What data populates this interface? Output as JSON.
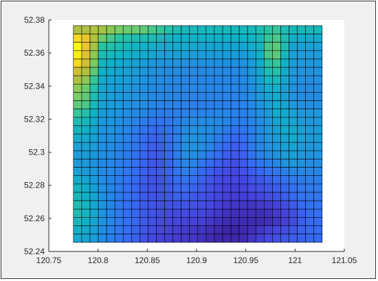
{
  "colors": {
    "figure_background": "#f0f0f0",
    "axes_background": "#ffffff",
    "frame_border": "#333333",
    "cell_edge": "#000000",
    "colormap": "parula"
  },
  "chart_data": {
    "type": "heatmap",
    "title": "",
    "xlabel": "",
    "ylabel": "",
    "xlim": [
      120.75,
      121.05
    ],
    "ylim": [
      52.24,
      52.38
    ],
    "grid": false,
    "colorbar": false,
    "x_ticks": [
      120.75,
      120.8,
      120.85,
      120.9,
      120.95,
      121,
      121.05
    ],
    "x_tick_labels": [
      "120.75",
      "120.8",
      "120.85",
      "120.9",
      "120.95",
      "121",
      "121.05"
    ],
    "y_ticks": [
      52.24,
      52.26,
      52.28,
      52.3,
      52.32,
      52.34,
      52.36,
      52.38
    ],
    "y_tick_labels": [
      "52.24",
      "52.26",
      "52.28",
      "52.3",
      "52.32",
      "52.34",
      "52.36",
      "52.38"
    ],
    "x_range": [
      120.775,
      121.0275
    ],
    "y_range": [
      52.2455,
      52.3765
    ],
    "n_cols": 30,
    "n_rows": 26,
    "value_range": [
      0,
      1
    ],
    "values": [
      [
        0.8,
        0.8,
        0.8,
        0.78,
        0.75,
        0.72,
        0.7,
        0.7,
        0.68,
        0.65,
        0.62,
        0.58,
        0.55,
        0.52,
        0.52,
        0.52,
        0.52,
        0.52,
        0.52,
        0.52,
        0.52,
        0.52,
        0.55,
        0.6,
        0.62,
        0.55,
        0.52,
        0.52,
        0.52,
        0.52
      ],
      [
        0.95,
        0.9,
        0.8,
        0.7,
        0.65,
        0.6,
        0.58,
        0.55,
        0.55,
        0.55,
        0.52,
        0.5,
        0.48,
        0.48,
        0.48,
        0.48,
        0.48,
        0.48,
        0.48,
        0.48,
        0.48,
        0.5,
        0.52,
        0.62,
        0.65,
        0.55,
        0.48,
        0.45,
        0.45,
        0.45
      ],
      [
        1.0,
        0.9,
        0.78,
        0.6,
        0.58,
        0.55,
        0.52,
        0.5,
        0.48,
        0.46,
        0.45,
        0.44,
        0.44,
        0.43,
        0.43,
        0.42,
        0.42,
        0.42,
        0.42,
        0.42,
        0.42,
        0.45,
        0.5,
        0.65,
        0.68,
        0.55,
        0.42,
        0.4,
        0.4,
        0.4
      ],
      [
        0.98,
        0.88,
        0.75,
        0.55,
        0.52,
        0.5,
        0.48,
        0.46,
        0.45,
        0.43,
        0.42,
        0.4,
        0.4,
        0.39,
        0.38,
        0.38,
        0.38,
        0.38,
        0.38,
        0.38,
        0.38,
        0.42,
        0.48,
        0.65,
        0.68,
        0.52,
        0.4,
        0.38,
        0.38,
        0.38
      ],
      [
        0.95,
        0.85,
        0.72,
        0.5,
        0.48,
        0.45,
        0.42,
        0.4,
        0.38,
        0.36,
        0.35,
        0.34,
        0.34,
        0.33,
        0.33,
        0.33,
        0.33,
        0.33,
        0.33,
        0.33,
        0.34,
        0.38,
        0.45,
        0.6,
        0.62,
        0.48,
        0.38,
        0.36,
        0.36,
        0.36
      ],
      [
        0.85,
        0.8,
        0.68,
        0.48,
        0.45,
        0.42,
        0.4,
        0.38,
        0.36,
        0.34,
        0.33,
        0.32,
        0.32,
        0.31,
        0.31,
        0.31,
        0.31,
        0.31,
        0.31,
        0.31,
        0.32,
        0.36,
        0.42,
        0.55,
        0.58,
        0.45,
        0.36,
        0.34,
        0.34,
        0.34
      ],
      [
        0.8,
        0.75,
        0.62,
        0.45,
        0.42,
        0.4,
        0.38,
        0.36,
        0.34,
        0.33,
        0.32,
        0.31,
        0.31,
        0.3,
        0.3,
        0.3,
        0.3,
        0.3,
        0.3,
        0.3,
        0.31,
        0.34,
        0.4,
        0.5,
        0.52,
        0.42,
        0.35,
        0.33,
        0.33,
        0.33
      ],
      [
        0.75,
        0.7,
        0.58,
        0.43,
        0.4,
        0.38,
        0.36,
        0.34,
        0.33,
        0.32,
        0.31,
        0.3,
        0.3,
        0.3,
        0.3,
        0.3,
        0.3,
        0.3,
        0.3,
        0.3,
        0.3,
        0.33,
        0.38,
        0.45,
        0.48,
        0.4,
        0.34,
        0.32,
        0.32,
        0.32
      ],
      [
        0.72,
        0.68,
        0.55,
        0.42,
        0.4,
        0.37,
        0.35,
        0.34,
        0.33,
        0.31,
        0.3,
        0.3,
        0.3,
        0.29,
        0.29,
        0.29,
        0.29,
        0.29,
        0.29,
        0.29,
        0.3,
        0.32,
        0.36,
        0.42,
        0.45,
        0.4,
        0.34,
        0.32,
        0.32,
        0.32
      ],
      [
        0.68,
        0.65,
        0.52,
        0.4,
        0.38,
        0.36,
        0.34,
        0.33,
        0.32,
        0.3,
        0.29,
        0.29,
        0.29,
        0.28,
        0.28,
        0.28,
        0.28,
        0.28,
        0.28,
        0.28,
        0.29,
        0.31,
        0.34,
        0.4,
        0.45,
        0.42,
        0.36,
        0.33,
        0.33,
        0.33
      ],
      [
        0.62,
        0.58,
        0.48,
        0.38,
        0.36,
        0.34,
        0.33,
        0.31,
        0.3,
        0.28,
        0.27,
        0.27,
        0.28,
        0.28,
        0.29,
        0.29,
        0.29,
        0.3,
        0.3,
        0.29,
        0.28,
        0.3,
        0.33,
        0.38,
        0.45,
        0.45,
        0.4,
        0.36,
        0.36,
        0.36
      ],
      [
        0.55,
        0.52,
        0.44,
        0.36,
        0.35,
        0.33,
        0.31,
        0.29,
        0.27,
        0.25,
        0.24,
        0.25,
        0.28,
        0.3,
        0.31,
        0.32,
        0.32,
        0.31,
        0.3,
        0.28,
        0.27,
        0.29,
        0.32,
        0.36,
        0.42,
        0.45,
        0.42,
        0.38,
        0.36,
        0.36
      ],
      [
        0.5,
        0.48,
        0.42,
        0.35,
        0.34,
        0.32,
        0.3,
        0.27,
        0.24,
        0.21,
        0.21,
        0.23,
        0.28,
        0.32,
        0.33,
        0.33,
        0.32,
        0.3,
        0.27,
        0.24,
        0.25,
        0.28,
        0.32,
        0.36,
        0.4,
        0.45,
        0.45,
        0.4,
        0.38,
        0.38
      ],
      [
        0.45,
        0.44,
        0.4,
        0.34,
        0.33,
        0.31,
        0.29,
        0.26,
        0.22,
        0.19,
        0.19,
        0.22,
        0.28,
        0.33,
        0.34,
        0.33,
        0.31,
        0.27,
        0.24,
        0.2,
        0.22,
        0.27,
        0.31,
        0.35,
        0.38,
        0.42,
        0.45,
        0.4,
        0.38,
        0.38
      ],
      [
        0.4,
        0.4,
        0.38,
        0.33,
        0.32,
        0.3,
        0.28,
        0.25,
        0.21,
        0.17,
        0.17,
        0.21,
        0.28,
        0.33,
        0.34,
        0.32,
        0.29,
        0.24,
        0.2,
        0.17,
        0.2,
        0.26,
        0.3,
        0.33,
        0.36,
        0.4,
        0.42,
        0.38,
        0.36,
        0.36
      ],
      [
        0.38,
        0.38,
        0.36,
        0.32,
        0.31,
        0.29,
        0.27,
        0.24,
        0.2,
        0.16,
        0.16,
        0.2,
        0.27,
        0.32,
        0.32,
        0.29,
        0.25,
        0.21,
        0.17,
        0.15,
        0.18,
        0.24,
        0.28,
        0.31,
        0.34,
        0.38,
        0.4,
        0.36,
        0.34,
        0.34
      ],
      [
        0.36,
        0.36,
        0.34,
        0.31,
        0.3,
        0.28,
        0.26,
        0.23,
        0.19,
        0.15,
        0.15,
        0.19,
        0.26,
        0.3,
        0.29,
        0.25,
        0.21,
        0.17,
        0.14,
        0.13,
        0.16,
        0.21,
        0.25,
        0.28,
        0.3,
        0.34,
        0.36,
        0.34,
        0.32,
        0.32
      ],
      [
        0.4,
        0.38,
        0.35,
        0.31,
        0.3,
        0.28,
        0.25,
        0.22,
        0.18,
        0.15,
        0.15,
        0.18,
        0.24,
        0.27,
        0.25,
        0.21,
        0.17,
        0.14,
        0.12,
        0.11,
        0.13,
        0.17,
        0.2,
        0.23,
        0.25,
        0.28,
        0.3,
        0.3,
        0.3,
        0.3
      ],
      [
        0.45,
        0.42,
        0.37,
        0.32,
        0.3,
        0.27,
        0.24,
        0.21,
        0.17,
        0.14,
        0.14,
        0.17,
        0.22,
        0.24,
        0.22,
        0.18,
        0.15,
        0.12,
        0.1,
        0.1,
        0.11,
        0.14,
        0.16,
        0.18,
        0.2,
        0.23,
        0.26,
        0.27,
        0.28,
        0.28
      ],
      [
        0.5,
        0.46,
        0.4,
        0.33,
        0.3,
        0.26,
        0.23,
        0.2,
        0.16,
        0.14,
        0.14,
        0.16,
        0.2,
        0.21,
        0.19,
        0.16,
        0.13,
        0.11,
        0.09,
        0.08,
        0.09,
        0.11,
        0.13,
        0.15,
        0.17,
        0.2,
        0.23,
        0.25,
        0.26,
        0.26
      ],
      [
        0.52,
        0.48,
        0.42,
        0.34,
        0.3,
        0.26,
        0.23,
        0.2,
        0.16,
        0.14,
        0.14,
        0.15,
        0.18,
        0.18,
        0.16,
        0.14,
        0.12,
        0.1,
        0.08,
        0.07,
        0.08,
        0.09,
        0.1,
        0.12,
        0.14,
        0.17,
        0.21,
        0.24,
        0.25,
        0.25
      ],
      [
        0.55,
        0.5,
        0.43,
        0.34,
        0.3,
        0.26,
        0.23,
        0.2,
        0.16,
        0.14,
        0.13,
        0.13,
        0.14,
        0.14,
        0.13,
        0.12,
        0.1,
        0.08,
        0.06,
        0.05,
        0.05,
        0.05,
        0.06,
        0.07,
        0.09,
        0.12,
        0.16,
        0.21,
        0.24,
        0.24
      ],
      [
        0.55,
        0.5,
        0.43,
        0.34,
        0.3,
        0.26,
        0.23,
        0.2,
        0.16,
        0.14,
        0.12,
        0.11,
        0.11,
        0.11,
        0.11,
        0.1,
        0.08,
        0.06,
        0.04,
        0.03,
        0.03,
        0.03,
        0.03,
        0.04,
        0.06,
        0.09,
        0.13,
        0.18,
        0.22,
        0.22
      ],
      [
        0.52,
        0.48,
        0.42,
        0.34,
        0.3,
        0.26,
        0.23,
        0.2,
        0.16,
        0.13,
        0.11,
        0.1,
        0.1,
        0.09,
        0.09,
        0.08,
        0.06,
        0.04,
        0.02,
        0.02,
        0.02,
        0.02,
        0.02,
        0.03,
        0.05,
        0.08,
        0.12,
        0.17,
        0.21,
        0.21
      ],
      [
        0.48,
        0.45,
        0.4,
        0.33,
        0.29,
        0.25,
        0.22,
        0.19,
        0.15,
        0.12,
        0.1,
        0.09,
        0.08,
        0.07,
        0.06,
        0.05,
        0.03,
        0.01,
        0.0,
        0.0,
        0.01,
        0.03,
        0.05,
        0.08,
        0.1,
        0.12,
        0.15,
        0.18,
        0.21,
        0.21
      ],
      [
        0.44,
        0.42,
        0.38,
        0.32,
        0.28,
        0.24,
        0.21,
        0.18,
        0.14,
        0.11,
        0.09,
        0.08,
        0.07,
        0.06,
        0.05,
        0.04,
        0.02,
        0.0,
        0.0,
        0.0,
        0.02,
        0.05,
        0.08,
        0.11,
        0.13,
        0.15,
        0.17,
        0.19,
        0.21,
        0.21
      ]
    ]
  }
}
